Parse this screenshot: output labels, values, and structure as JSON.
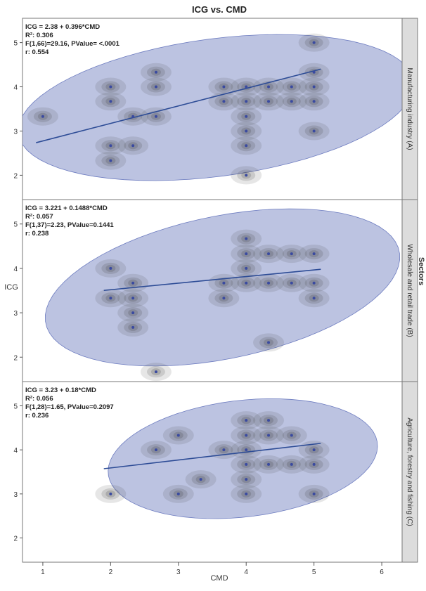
{
  "chart_data": {
    "type": "scatter",
    "title": "ICG vs. CMD",
    "xlabel": "CMD",
    "ylabel": "ICG",
    "group_label": "Sectors",
    "xlim": [
      0.7,
      6.3
    ],
    "x_ticks": [
      1,
      2,
      3,
      4,
      5,
      6
    ],
    "y_ticks": [
      2,
      3,
      4,
      5
    ],
    "colors": {
      "ellipse": "#8592c9",
      "fit_line": "#2d4c96",
      "points": "#3a4aa0",
      "contour_dark": "#3a3a3a",
      "strip": "#dcdcdc"
    },
    "panels": [
      {
        "sector": "Manufacturing industry (A)",
        "ylim": [
          1.45,
          5.55
        ],
        "stats": [
          "ICG = 2.38 + 0.396*CMD",
          "R²: 0.306",
          "F(1,66)=29.16, PValue= <.0001",
          "r: 0.554"
        ],
        "fit": {
          "intercept": 2.38,
          "slope": 0.396
        },
        "points": [
          [
            1,
            3.33
          ],
          [
            2,
            4
          ],
          [
            2,
            3.67
          ],
          [
            2,
            2.67
          ],
          [
            2,
            2.33
          ],
          [
            2.33,
            2.67
          ],
          [
            2.33,
            3.33
          ],
          [
            2.67,
            4.33
          ],
          [
            2.67,
            4
          ],
          [
            2.67,
            3.33
          ],
          [
            3.67,
            4
          ],
          [
            3.67,
            3.67
          ],
          [
            4,
            4
          ],
          [
            4,
            3.67
          ],
          [
            4,
            3.33
          ],
          [
            4,
            3
          ],
          [
            4,
            2.67
          ],
          [
            4,
            2
          ],
          [
            4.33,
            4
          ],
          [
            4.33,
            3.67
          ],
          [
            4.67,
            4
          ],
          [
            4.67,
            3.67
          ],
          [
            5,
            5
          ],
          [
            5,
            4.33
          ],
          [
            5,
            4
          ],
          [
            5,
            3.67
          ],
          [
            5,
            3
          ]
        ]
      },
      {
        "sector": "Wholesale and retail trade (B)",
        "ylim": [
          1.45,
          5.55
        ],
        "stats": [
          "ICG = 3.221 + 0.1488*CMD",
          "R²: 0.057",
          "F(1,37)=2.23, PValue=0.1441",
          "r: 0.238"
        ],
        "fit": {
          "intercept": 3.221,
          "slope": 0.1488
        },
        "points": [
          [
            2,
            4
          ],
          [
            2,
            3.33
          ],
          [
            2.33,
            3.67
          ],
          [
            2.33,
            3.33
          ],
          [
            2.33,
            3
          ],
          [
            2.33,
            2.67
          ],
          [
            2.67,
            1.67
          ],
          [
            3.67,
            3.67
          ],
          [
            3.67,
            3.33
          ],
          [
            4,
            4.67
          ],
          [
            4,
            4.33
          ],
          [
            4,
            4
          ],
          [
            4,
            3.67
          ],
          [
            4.33,
            4.33
          ],
          [
            4.33,
            3.67
          ],
          [
            4.33,
            2.33
          ],
          [
            4.67,
            4.33
          ],
          [
            4.67,
            3.67
          ],
          [
            5,
            4.33
          ],
          [
            5,
            3.67
          ],
          [
            5,
            3.33
          ]
        ]
      },
      {
        "sector": "Agriculture, forestry and fishing (C)",
        "ylim": [
          1.45,
          5.55
        ],
        "stats": [
          "ICG = 3.23 + 0.18*CMD",
          "R²: 0.056",
          "F(1,28)=1.65, PValue=0.2097",
          "r: 0.236"
        ],
        "fit": {
          "intercept": 3.23,
          "slope": 0.18
        },
        "points": [
          [
            2,
            3
          ],
          [
            2.67,
            4
          ],
          [
            3,
            4.33
          ],
          [
            3,
            3
          ],
          [
            3.33,
            3.33
          ],
          [
            3.67,
            4
          ],
          [
            4,
            4.67
          ],
          [
            4,
            4.33
          ],
          [
            4,
            4
          ],
          [
            4,
            3.67
          ],
          [
            4,
            3.33
          ],
          [
            4,
            3
          ],
          [
            4.33,
            4.67
          ],
          [
            4.33,
            4.33
          ],
          [
            4.33,
            3.67
          ],
          [
            4.67,
            4.33
          ],
          [
            4.67,
            3.67
          ],
          [
            5,
            4
          ],
          [
            5,
            3.67
          ],
          [
            5,
            3
          ]
        ]
      }
    ]
  }
}
